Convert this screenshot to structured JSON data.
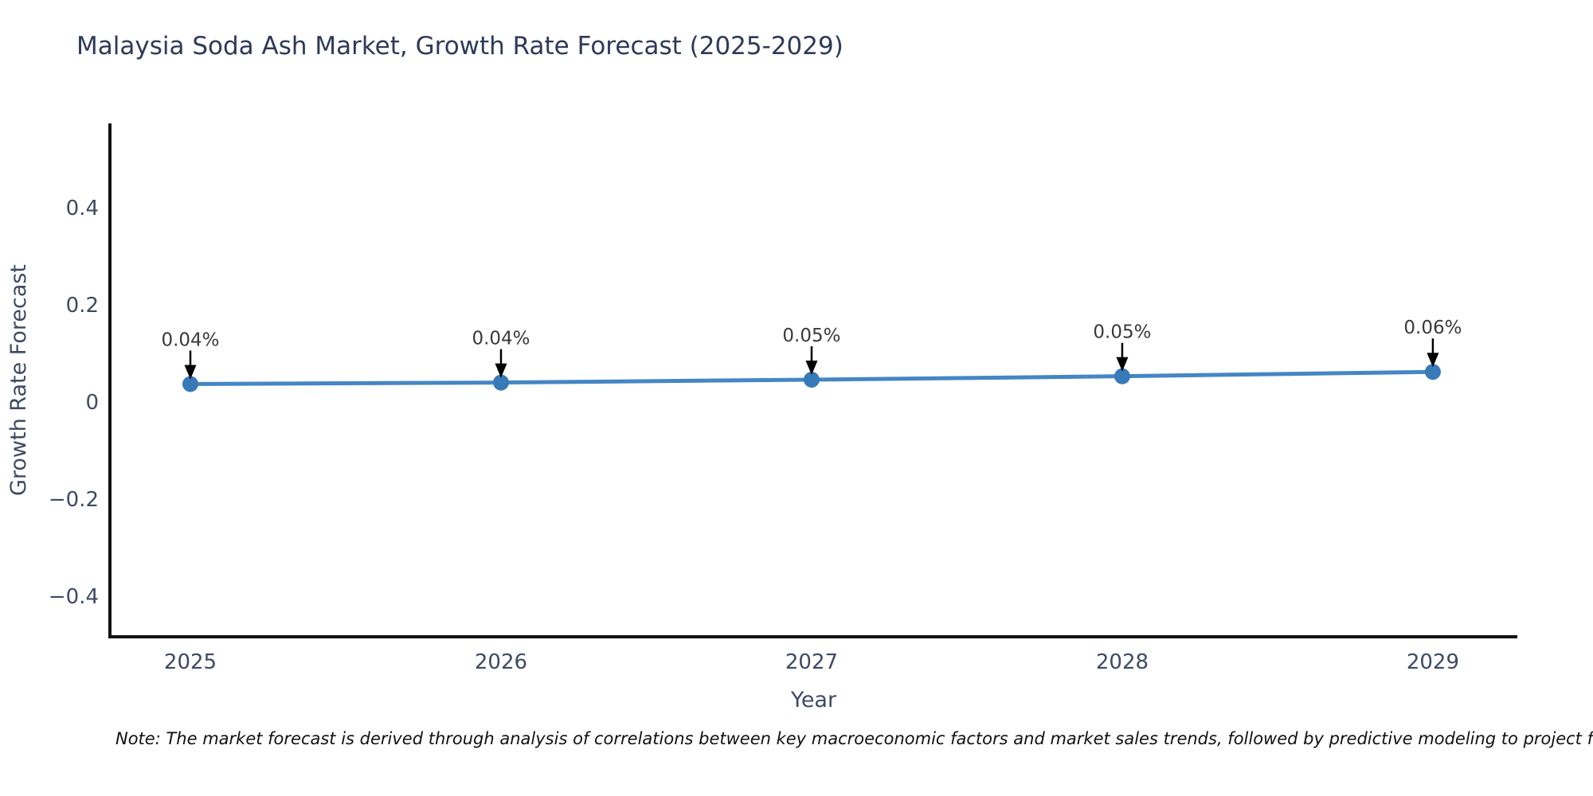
{
  "note": "Note: The market forecast is derived through analysis of correlations between key macroeconomic factors and market sales trends, followed by predictive modeling to project future sa",
  "colors": {
    "line": "#4586c4",
    "marker": "#3879b8",
    "title_text": "#2e3a59",
    "axis_text": "#3d4a63",
    "annotation_text": "#3a3a3a",
    "arrow": "#000000",
    "spine": "#111111",
    "background": "#ffffff"
  },
  "chart_data": {
    "type": "line",
    "title": "Malaysia Soda Ash Market, Growth Rate Forecast (2025-2029)",
    "xlabel": "Year",
    "ylabel": "Growth Rate Forecast",
    "categories": [
      "2025",
      "2026",
      "2027",
      "2028",
      "2029"
    ],
    "x": [
      2025,
      2026,
      2027,
      2028,
      2029
    ],
    "values": [
      0.037,
      0.04,
      0.046,
      0.053,
      0.062
    ],
    "point_labels": [
      "0.04%",
      "0.04%",
      "0.05%",
      "0.05%",
      "0.06%"
    ],
    "yticks": [
      -0.4,
      -0.2,
      0,
      0.2,
      0.4
    ],
    "ytick_labels": [
      "−0.4",
      "−0.2",
      "0",
      "0.2",
      "0.4"
    ],
    "ylim": [
      -0.4836,
      0.5738
    ],
    "xlim": [
      2024.741,
      2029.272
    ],
    "grid": false,
    "legend": "none",
    "marker": "circle",
    "annotation_arrows": true
  }
}
